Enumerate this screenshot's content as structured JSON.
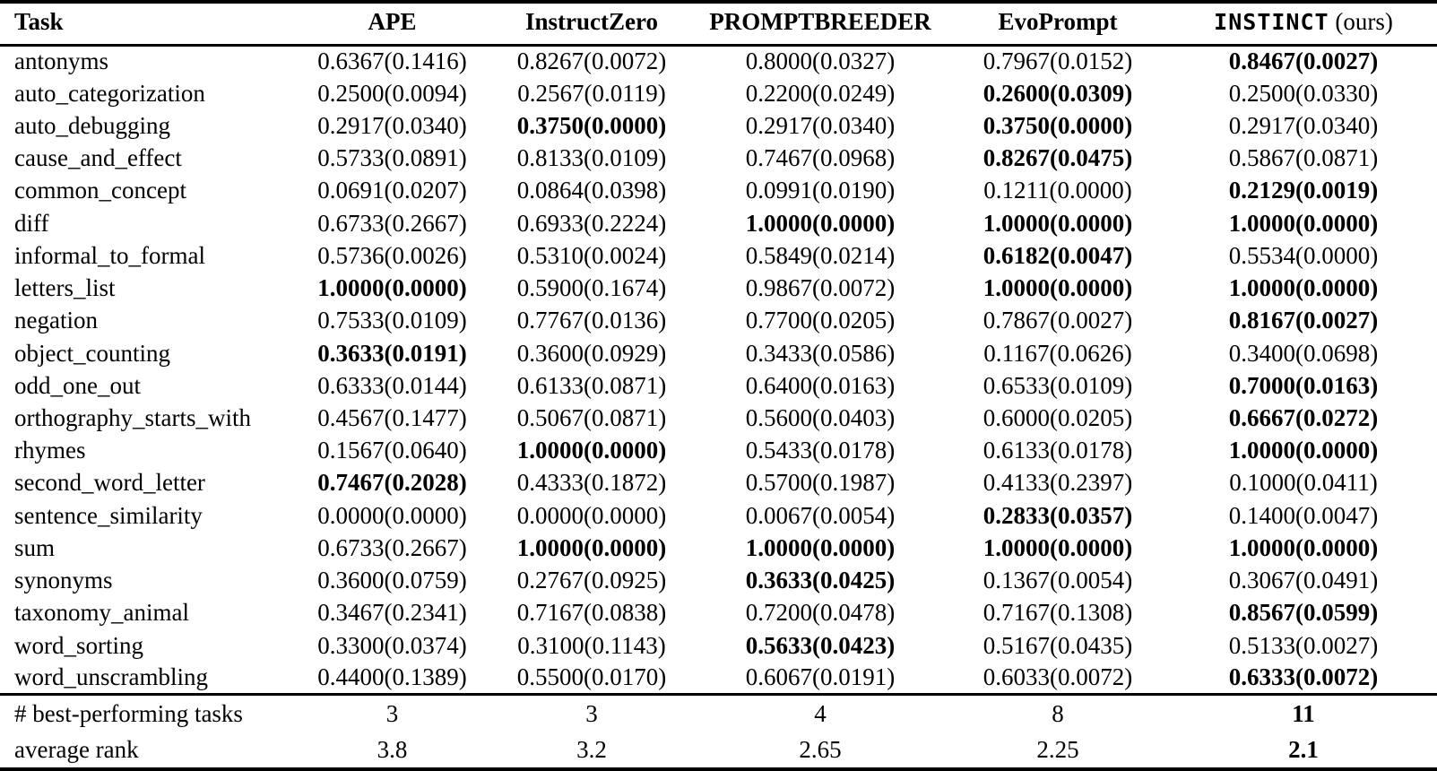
{
  "table": {
    "header": {
      "task": "Task",
      "ape": "APE",
      "instructzero": "InstructZero",
      "promptbreeder": "PROMPTBREEDER",
      "evoprompt": "EvoPrompt",
      "instinct": "INSTINCT",
      "instinct_suffix": "(ours)"
    },
    "rows": [
      {
        "task": "antonyms",
        "cells": [
          {
            "text": "0.6367(0.1416)",
            "bold": false
          },
          {
            "text": "0.8267(0.0072)",
            "bold": false
          },
          {
            "text": "0.8000(0.0327)",
            "bold": false
          },
          {
            "text": "0.7967(0.0152)",
            "bold": false
          },
          {
            "text": "0.8467(0.0027)",
            "bold": true
          }
        ]
      },
      {
        "task": "auto_categorization",
        "cells": [
          {
            "text": "0.2500(0.0094)",
            "bold": false
          },
          {
            "text": "0.2567(0.0119)",
            "bold": false
          },
          {
            "text": "0.2200(0.0249)",
            "bold": false
          },
          {
            "text": "0.2600(0.0309)",
            "bold": true
          },
          {
            "text": "0.2500(0.0330)",
            "bold": false
          }
        ]
      },
      {
        "task": "auto_debugging",
        "cells": [
          {
            "text": "0.2917(0.0340)",
            "bold": false
          },
          {
            "text": "0.3750(0.0000)",
            "bold": true
          },
          {
            "text": "0.2917(0.0340)",
            "bold": false
          },
          {
            "text": "0.3750(0.0000)",
            "bold": true
          },
          {
            "text": "0.2917(0.0340)",
            "bold": false
          }
        ]
      },
      {
        "task": "cause_and_effect",
        "cells": [
          {
            "text": "0.5733(0.0891)",
            "bold": false
          },
          {
            "text": "0.8133(0.0109)",
            "bold": false
          },
          {
            "text": "0.7467(0.0968)",
            "bold": false
          },
          {
            "text": "0.8267(0.0475)",
            "bold": true
          },
          {
            "text": "0.5867(0.0871)",
            "bold": false
          }
        ]
      },
      {
        "task": "common_concept",
        "cells": [
          {
            "text": "0.0691(0.0207)",
            "bold": false
          },
          {
            "text": "0.0864(0.0398)",
            "bold": false
          },
          {
            "text": "0.0991(0.0190)",
            "bold": false
          },
          {
            "text": "0.1211(0.0000)",
            "bold": false
          },
          {
            "text": "0.2129(0.0019)",
            "bold": true
          }
        ]
      },
      {
        "task": "diff",
        "cells": [
          {
            "text": "0.6733(0.2667)",
            "bold": false
          },
          {
            "text": "0.6933(0.2224)",
            "bold": false
          },
          {
            "text": "1.0000(0.0000)",
            "bold": true
          },
          {
            "text": "1.0000(0.0000)",
            "bold": true
          },
          {
            "text": "1.0000(0.0000)",
            "bold": true
          }
        ]
      },
      {
        "task": "informal_to_formal",
        "cells": [
          {
            "text": "0.5736(0.0026)",
            "bold": false
          },
          {
            "text": "0.5310(0.0024)",
            "bold": false
          },
          {
            "text": "0.5849(0.0214)",
            "bold": false
          },
          {
            "text": "0.6182(0.0047)",
            "bold": true
          },
          {
            "text": "0.5534(0.0000)",
            "bold": false
          }
        ]
      },
      {
        "task": "letters_list",
        "cells": [
          {
            "text": "1.0000(0.0000)",
            "bold": true
          },
          {
            "text": "0.5900(0.1674)",
            "bold": false
          },
          {
            "text": "0.9867(0.0072)",
            "bold": false
          },
          {
            "text": "1.0000(0.0000)",
            "bold": true
          },
          {
            "text": "1.0000(0.0000)",
            "bold": true
          }
        ]
      },
      {
        "task": "negation",
        "cells": [
          {
            "text": "0.7533(0.0109)",
            "bold": false
          },
          {
            "text": "0.7767(0.0136)",
            "bold": false
          },
          {
            "text": "0.7700(0.0205)",
            "bold": false
          },
          {
            "text": "0.7867(0.0027)",
            "bold": false
          },
          {
            "text": "0.8167(0.0027)",
            "bold": true
          }
        ]
      },
      {
        "task": "object_counting",
        "cells": [
          {
            "text": "0.3633(0.0191)",
            "bold": true
          },
          {
            "text": "0.3600(0.0929)",
            "bold": false
          },
          {
            "text": "0.3433(0.0586)",
            "bold": false
          },
          {
            "text": "0.1167(0.0626)",
            "bold": false
          },
          {
            "text": "0.3400(0.0698)",
            "bold": false
          }
        ]
      },
      {
        "task": "odd_one_out",
        "cells": [
          {
            "text": "0.6333(0.0144)",
            "bold": false
          },
          {
            "text": "0.6133(0.0871)",
            "bold": false
          },
          {
            "text": "0.6400(0.0163)",
            "bold": false
          },
          {
            "text": "0.6533(0.0109)",
            "bold": false
          },
          {
            "text": "0.7000(0.0163)",
            "bold": true
          }
        ]
      },
      {
        "task": "orthography_starts_with",
        "cells": [
          {
            "text": "0.4567(0.1477)",
            "bold": false
          },
          {
            "text": "0.5067(0.0871)",
            "bold": false
          },
          {
            "text": "0.5600(0.0403)",
            "bold": false
          },
          {
            "text": "0.6000(0.0205)",
            "bold": false
          },
          {
            "text": "0.6667(0.0272)",
            "bold": true
          }
        ]
      },
      {
        "task": "rhymes",
        "cells": [
          {
            "text": "0.1567(0.0640)",
            "bold": false
          },
          {
            "text": "1.0000(0.0000)",
            "bold": true
          },
          {
            "text": "0.5433(0.0178)",
            "bold": false
          },
          {
            "text": "0.6133(0.0178)",
            "bold": false
          },
          {
            "text": "1.0000(0.0000)",
            "bold": true
          }
        ]
      },
      {
        "task": "second_word_letter",
        "cells": [
          {
            "text": "0.7467(0.2028)",
            "bold": true
          },
          {
            "text": "0.4333(0.1872)",
            "bold": false
          },
          {
            "text": "0.5700(0.1987)",
            "bold": false
          },
          {
            "text": "0.4133(0.2397)",
            "bold": false
          },
          {
            "text": "0.1000(0.0411)",
            "bold": false
          }
        ]
      },
      {
        "task": "sentence_similarity",
        "cells": [
          {
            "text": "0.0000(0.0000)",
            "bold": false
          },
          {
            "text": "0.0000(0.0000)",
            "bold": false
          },
          {
            "text": "0.0067(0.0054)",
            "bold": false
          },
          {
            "text": "0.2833(0.0357)",
            "bold": true
          },
          {
            "text": "0.1400(0.0047)",
            "bold": false
          }
        ]
      },
      {
        "task": "sum",
        "cells": [
          {
            "text": "0.6733(0.2667)",
            "bold": false
          },
          {
            "text": "1.0000(0.0000)",
            "bold": true
          },
          {
            "text": "1.0000(0.0000)",
            "bold": true
          },
          {
            "text": "1.0000(0.0000)",
            "bold": true
          },
          {
            "text": "1.0000(0.0000)",
            "bold": true
          }
        ]
      },
      {
        "task": "synonyms",
        "cells": [
          {
            "text": "0.3600(0.0759)",
            "bold": false
          },
          {
            "text": "0.2767(0.0925)",
            "bold": false
          },
          {
            "text": "0.3633(0.0425)",
            "bold": true
          },
          {
            "text": "0.1367(0.0054)",
            "bold": false
          },
          {
            "text": "0.3067(0.0491)",
            "bold": false
          }
        ]
      },
      {
        "task": "taxonomy_animal",
        "cells": [
          {
            "text": "0.3467(0.2341)",
            "bold": false
          },
          {
            "text": "0.7167(0.0838)",
            "bold": false
          },
          {
            "text": "0.7200(0.0478)",
            "bold": false
          },
          {
            "text": "0.7167(0.1308)",
            "bold": false
          },
          {
            "text": "0.8567(0.0599)",
            "bold": true
          }
        ]
      },
      {
        "task": "word_sorting",
        "cells": [
          {
            "text": "0.3300(0.0374)",
            "bold": false
          },
          {
            "text": "0.3100(0.1143)",
            "bold": false
          },
          {
            "text": "0.5633(0.0423)",
            "bold": true
          },
          {
            "text": "0.5167(0.0435)",
            "bold": false
          },
          {
            "text": "0.5133(0.0027)",
            "bold": false
          }
        ]
      },
      {
        "task": "word_unscrambling",
        "cells": [
          {
            "text": "0.4400(0.1389)",
            "bold": false
          },
          {
            "text": "0.5500(0.0170)",
            "bold": false
          },
          {
            "text": "0.6067(0.0191)",
            "bold": false
          },
          {
            "text": "0.6033(0.0072)",
            "bold": false
          },
          {
            "text": "0.6333(0.0072)",
            "bold": true
          }
        ]
      }
    ],
    "summary_rows": [
      {
        "task": "# best-performing tasks",
        "cells": [
          {
            "text": "3",
            "bold": false
          },
          {
            "text": "3",
            "bold": false
          },
          {
            "text": "4",
            "bold": false
          },
          {
            "text": "8",
            "bold": false
          },
          {
            "text": "11",
            "bold": true
          }
        ]
      },
      {
        "task": "average rank",
        "cells": [
          {
            "text": "3.8",
            "bold": false
          },
          {
            "text": "3.2",
            "bold": false
          },
          {
            "text": "2.65",
            "bold": false
          },
          {
            "text": "2.25",
            "bold": false
          },
          {
            "text": "2.1",
            "bold": true
          }
        ]
      }
    ]
  }
}
